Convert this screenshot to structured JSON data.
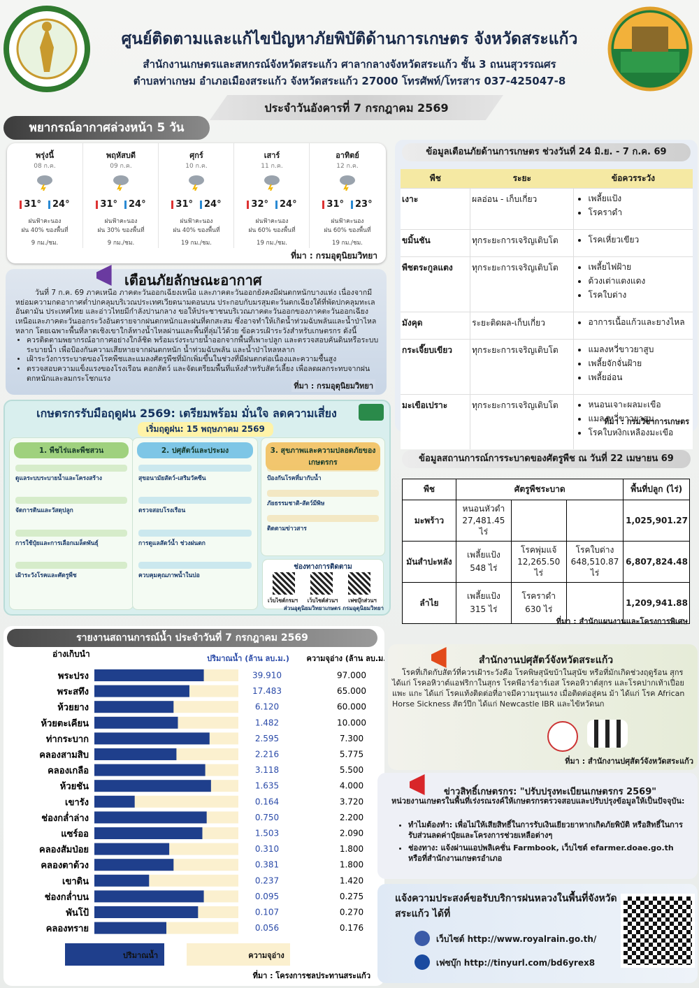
{
  "header": {
    "title": "ศูนย์ติดตามและแก้ไขปัญหาภัยพิบัติด้านการเกษตร จังหวัดสระแก้ว",
    "line1": "สำนักงานเกษตรและสหกรณ์จังหวัดสระแก้ว ศาลากลางจังหวัดสระแก้ว ชั้น 3 ถนนสุวรรณศร",
    "line2": "ตำบลท่าเกษม อำเภอเมืองสระแก้ว จังหวัดสระแก้ว 27000 โทรศัพท์/โทรสาร 037-425047-8",
    "date": "ประจำวันอังคารที่ 7 กรกฎาคม 2569"
  },
  "forecast": {
    "title": "พยากรณ์อากาศล่วงหน้า 5 วัน",
    "days": [
      {
        "day": "พรุ่งนี้",
        "date": "08 ก.ค.",
        "high": "31°",
        "low": "24°",
        "desc": "ฝนฟ้าคะนอง",
        "rain": "ฝน 40% ของพื้นที่",
        "wind": "9 กม./ชม."
      },
      {
        "day": "พฤหัสบดี",
        "date": "09 ก.ค.",
        "high": "31°",
        "low": "24°",
        "desc": "ฝนฟ้าคะนอง",
        "rain": "ฝน 30% ของพื้นที่",
        "wind": "9 กม./ชม."
      },
      {
        "day": "ศุกร์",
        "date": "10 ก.ค.",
        "high": "31°",
        "low": "24°",
        "desc": "ฝนฟ้าคะนอง",
        "rain": "ฝน 40% ของพื้นที่",
        "wind": "19 กม./ชม."
      },
      {
        "day": "เสาร์",
        "date": "11 ก.ค.",
        "high": "32°",
        "low": "24°",
        "desc": "ฝนฟ้าคะนอง",
        "rain": "ฝน 60% ของพื้นที่",
        "wind": "19 กม./ชม."
      },
      {
        "day": "อาทิตย์",
        "date": "12 ก.ค.",
        "high": "31°",
        "low": "23°",
        "desc": "ฝนฟ้าคะนอง",
        "rain": "ฝน 60% ของพื้นที่",
        "wind": "19 กม./ชม."
      }
    ],
    "source": "ที่มา : กรมอุตุนิยมวิทยา"
  },
  "warning": {
    "title": "เตือนภัยลักษณะอากาศ",
    "text": "วันที่ 7 ก.ค. 69 ภาคเหนือ ภาคตะวันออกเฉียงเหนือ และภาคตะวันออกยังคงมีฝนตกหนักบางแห่ง เนื่องจากมีหย่อมความกดอากาศต่ำปกคลุมบริเวณประเทศเวียดนามตอนบน ประกอบกับมรสุมตะวันตกเฉียงใต้ที่พัดปกคลุมทะเลอันดามัน ประเทศไทย และอ่าวไทยมีกำลังปานกลาง ขอให้ประชาชนบริเวณภาคตะวันออกของภาคตะวันออกเฉียงเหนือและภาคตะวันออกระวังอันตรายจากฝนตกหนักและฝนที่ตกสะสม ซึ่งอาจทำให้เกิดน้ำท่วมฉับพลันและน้ำป่าไหลหลาก โดยเฉพาะพื้นที่ลาดเชิงเขาใกล้ทางน้ำไหลผ่านและพื้นที่ลุ่มไว้ด้วย ข้อควรเฝ้าระวังสำหรับเกษตรกร ดังนี้",
    "bullets": [
      "ควรติดตามพยากรณ์อากาศอย่างใกล้ชิด พร้อมเร่งระบายน้ำออกจากพื้นที่เพาะปลูก และตรวจสอบคันดินหรือระบบระบายน้ำ เพื่อป้องกันความเสียหายจากฝนตกหนัก น้ำท่วมฉับพลัน และน้ำป่าไหลหลาก",
      "เฝ้าระวังการระบาดของโรคพืชและแมลงศัตรูพืชที่มักเพิ่มขึ้นในช่วงที่มีฝนตกต่อเนื่องและความชื้นสูง",
      "ตรวจสอบความแข็งแรงของโรงเรือน คอกสัตว์ และจัดเตรียมพื้นที่แห้งสำหรับสัตว์เลี้ยง เพื่อลดผลกระทบจากฝนตกหนักและลมกระโชกแรง"
    ],
    "source": "ที่มา : กรมอุตุนิยมวิทยา"
  },
  "poster": {
    "title": "เกษตรกรรับมือฤดูฝน 2569: เตรียมพร้อม มั่นใจ ลดความเสี่ยง",
    "start": "เริ่มฤดูฝน: 15 พฤษภาคม 2569",
    "sections": [
      {
        "heading": "1. พืชไร่และพืชสวน",
        "items": [
          "ดูแลระบบระบายน้ำและโครงสร้าง",
          "จัดการดินและวัสดุปลูก",
          "การใช้ปุ๋ยและการเลือกเมล็ดพันธุ์",
          "เฝ้าระวังโรคและศัตรูพืช"
        ]
      },
      {
        "heading": "2. ปศุสัตว์และประมง",
        "items": [
          "สุขอนามัยสัตว์-เสริมวัคซีน",
          "ตรวจสอบโรงเรือน",
          "การดูแลสัตว์น้ำ ช่วงฝนตก",
          "ควบคุมคุณภาพน้ำในบ่อ"
        ]
      },
      {
        "heading": "3. สุขภาพและความปลอดภัยของเกษตรกร",
        "items": [
          "ป้องกันโรคที่มากับน้ำ",
          "ภัยธรรมชาติ-สัตว์มีพิษ",
          "ติดตามข่าวสาร"
        ]
      }
    ],
    "channels_title": "ช่องทางการติดตาม",
    "channels": [
      "เว็บไซต์กรมฯ",
      "เว็บไซต์ส่วนฯ",
      "เฟซบุ๊กส่วนฯ"
    ],
    "footer": "ส่วนอุตุนิยมวิทยาเกษตร กรมอุตุนิยมวิทยา"
  },
  "alert": {
    "title": "ข้อมูลเตือนภัยด้านการเกษตร ช่วงวันที่ 24 มิ.ย. - 7 ก.ค. 69",
    "headers": [
      "พืช",
      "ระยะ",
      "ข้อควรระวัง"
    ],
    "rows": [
      {
        "crop": "เงาะ",
        "stage": "ผลอ่อน - เก็บเกี่ยว",
        "risks": [
          "เพลี้ยแป้ง",
          "โรคราดำ"
        ]
      },
      {
        "crop": "ขมิ้นชัน",
        "stage": "ทุกระยะการเจริญเติบโต",
        "risks": [
          "โรคเหี่ยวเขียว"
        ]
      },
      {
        "crop": "พืชตระกูลแตง",
        "stage": "ทุกระยะการเจริญเติบโต",
        "risks": [
          "เพลี้ยไฟฝ้าย",
          "ด้วงเต่าแตงแดง",
          "โรคใบด่าง"
        ]
      },
      {
        "crop": "มังคุด",
        "stage": "ระยะติดผล-เก็บเกี่ยว",
        "risks": [
          "อาการเนื้อแก้วและยางไหล"
        ]
      },
      {
        "crop": "กระเจี๊ยบเขียว",
        "stage": "ทุกระยะการเจริญเติบโต",
        "risks": [
          "แมลงหวี่ขาวยาสูบ",
          "เพลี้ยจักจั่นฝ้าย",
          "เพลี้ยอ่อน"
        ]
      },
      {
        "crop": "มะเขือเปราะ",
        "stage": "ทุกระยะการเจริญเติบโต",
        "risks": [
          "หนอนเจาะผลมะเขือ",
          "แมลงหวี่ขาวยาสูบ",
          "โรคใบหงิกเหลืองมะเขือ"
        ]
      }
    ],
    "source": "ที่มา : กรมวิชาการเกษตร"
  },
  "pest": {
    "title": "ข้อมูลสถานการณ์การระบาดของศัตรูพืช ณ วันที่ 22 เมษายน 69",
    "headers": [
      "พืช",
      "ศัตรูพืชระบาด",
      "พื้นที่ปลูก (ไร่)"
    ],
    "rows": [
      {
        "crop": "มะพร้าว",
        "pests": [
          "หนอนหัวดำ 27,481.45 ไร่"
        ],
        "area": "1,025,901.27"
      },
      {
        "crop": "มันสำปะหลัง",
        "pests": [
          "เพลี้ยแป้ง 548 ไร่",
          "โรคพุ่มแจ้ 12,265.50 ไร่",
          "โรคใบด่าง 648,510.87 ไร่"
        ],
        "area": "6,807,824.48"
      },
      {
        "crop": "ลำไย",
        "pests": [
          "เพลี้ยแป้ง 315 ไร่",
          "โรคราดำ 630 ไร่"
        ],
        "area": "1,209,941.88"
      }
    ],
    "source": "ที่มา : สำนักแผนงานและโครงการพิเศษ"
  },
  "chart_data": {
    "type": "bar",
    "orientation": "horizontal",
    "title": "รายงานสถานการณ์น้ำ ประจำวันที่ 7 กรกฎาคม 2569",
    "category_header": "อ่างเก็บน้ำ",
    "categories": [
      "พระปรง",
      "พระสทึง",
      "ห้วยยาง",
      "ห้วยตะเคียน",
      "ท่ากระบาก",
      "คลองสามสิบ",
      "คลองเกลือ",
      "ห้วยชัน",
      "เขารัง",
      "ช่องกล่ำล่าง",
      "แซร์ออ",
      "คลองสัมป่อย",
      "คลองตาด้วง",
      "เขาดิน",
      "ช่องกล่ำบน",
      "พันโป้",
      "คลองทราย"
    ],
    "xlim": [
      0,
      100
    ],
    "series": [
      {
        "name": "ปริมาณน้ำ",
        "color": "#1f3f8c",
        "values": [
          76,
          66,
          55,
          58,
          80,
          57,
          77,
          81,
          28,
          78,
          75,
          52,
          55,
          38,
          76,
          72,
          50
        ]
      },
      {
        "name": "ความจุอ่าง",
        "color": "#fbf0cf",
        "values": [
          100,
          100,
          100,
          100,
          100,
          100,
          100,
          100,
          100,
          100,
          100,
          100,
          100,
          100,
          100,
          100,
          100
        ]
      }
    ],
    "volume_header": "ปริมาณน้ำ (ล้าน ลบ.ม.)",
    "volumes": [
      "39.910",
      "17.483",
      "6.120",
      "1.482",
      "2.595",
      "2.216",
      "3.118",
      "1.635",
      "0.164",
      "0.750",
      "1.503",
      "0.310",
      "0.381",
      "0.237",
      "0.095",
      "0.107",
      "0.056"
    ],
    "capacity_header": "ความจุอ่าง (ล้าน ลบ.ม.)",
    "capacities": [
      "97.000",
      "65.000",
      "60.000",
      "10.000",
      "7.300",
      "5.775",
      "5.500",
      "4.000",
      "3.720",
      "2.200",
      "2.090",
      "1.800",
      "1.800",
      "1.420",
      "0.275",
      "0.270",
      "0.176"
    ],
    "source": "ที่มา : โครงการชลประทานสระแก้ว"
  },
  "livestock": {
    "title": "สำนักงานปศุสัตว์จังหวัดสระแก้ว",
    "text": "โรคที่เกิดกับสัตว์ที่ควรเฝ้าระวังคือ โรคพิษสุนัขบ้าในสุนัข หรือที่มักเกิดช่วงฤดูร้อน สุกร ได้แก่ โรคอหิวาต์แอฟริกาในสุกร โรคพีอาร์อาร์เอส โรคอหิวาต์สุกร และโรคปากเท้าเปื่อย แพะ แกะ ได้แก่ โรคแท้งติดต่อที่อาจมีความรุนแรง เมื่อติดต่อสู่คน ม้า ได้แก่ โรค African Horse Sickness สัตว์ปีก ได้แก่ Newcastle IBR และไข้หวัดนก",
    "source": "ที่มา : สำนักงานปศุสัตว์จังหวัดสระแก้ว"
  },
  "news": {
    "title": "ข่าวสิทธิ์เกษตรกร: \"ปรับปรุงทะเบียนเกษตรกร 2569\"",
    "intro": "หน่วยงานเกษตรในพื้นที่เร่งรณรงค์ให้เกษตรกรตรวจสอบและปรับปรุงข้อมูลให้เป็นปัจจุบัน:",
    "bullets": [
      "ทำไมต้องทำ: เพื่อไม่ให้เสียสิทธิ์ในการรับเงินเยียวยาหากเกิดภัยพิบัติ หรือสิทธิ์ในการรับส่วนลดค่าปุ๋ยและโครงการช่วยเหลือต่างๆ",
      "ช่องทาง: แจ้งผ่านแอปพลิเคชั่น Farmbook, เว็บไซต์ efarmer.doae.go.th หรือที่สำนักงานเกษตรอำเภอ"
    ]
  },
  "royal_rain": {
    "title": "แจ้งความประสงค์ขอรับบริการฝนหลวงในพื้นที่จังหวัดสระแก้ว ได้ที่",
    "website": "เว็บไซต์ http://www.royalrain.go.th/",
    "facebook": "เฟซบุ๊ก http://tinyurl.com/bd6yrex8"
  }
}
